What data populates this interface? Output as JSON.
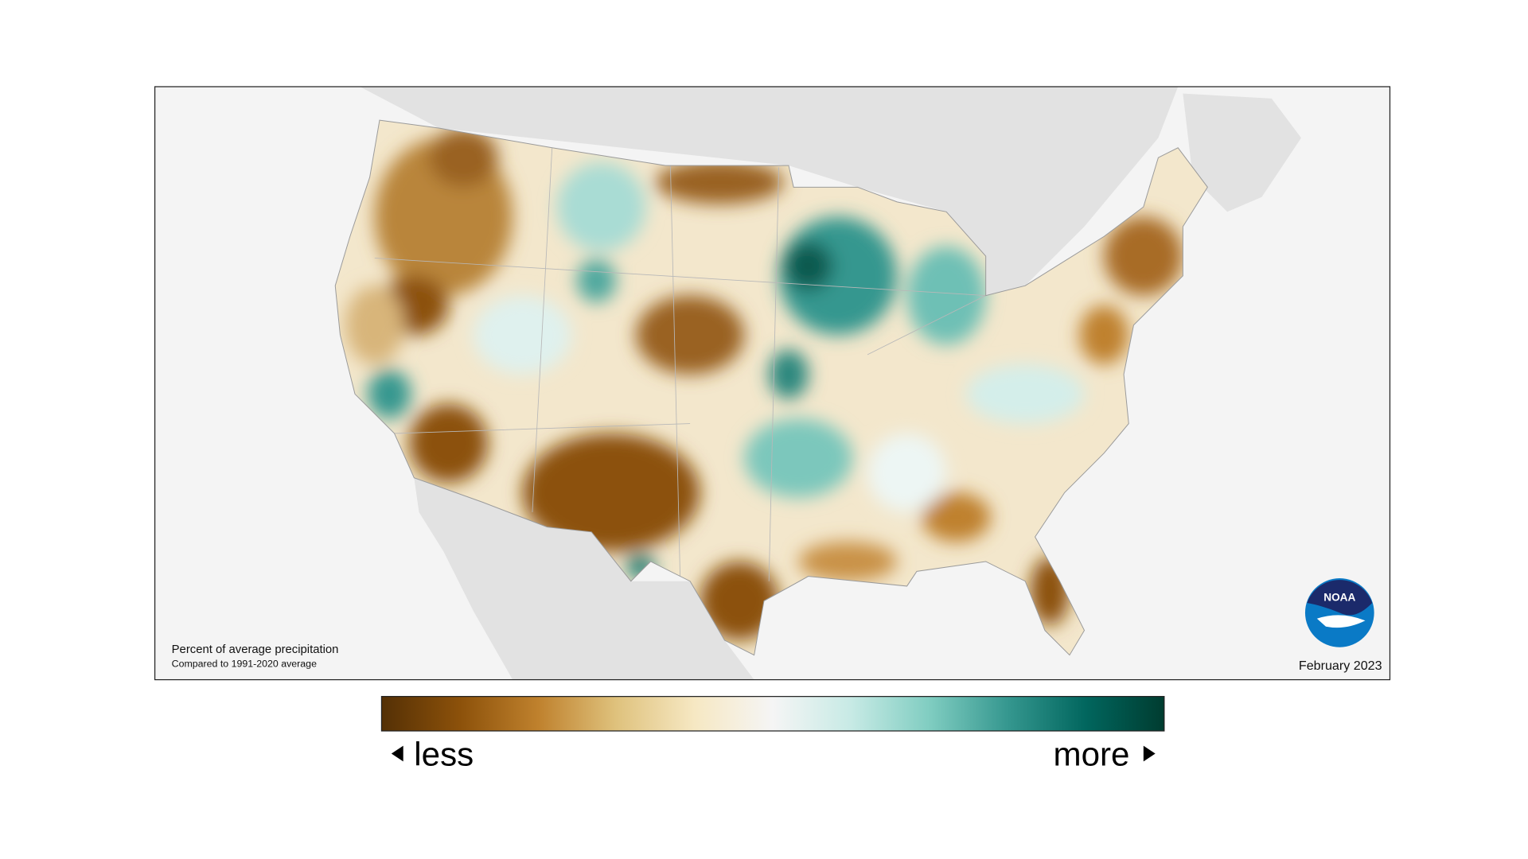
{
  "map": {
    "caption_title": "Percent of average precipitation",
    "caption_subtitle": "Compared to 1991-2020 average",
    "date": "February 2023",
    "logo_text": "NOAA"
  },
  "legend": {
    "low_label": "less",
    "high_label": "more"
  }
}
